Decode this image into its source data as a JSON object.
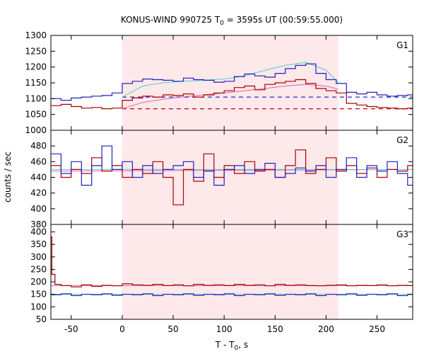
{
  "chart_data": {
    "type": "line",
    "title": "KONUS-WIND 990725 T",
    "title_sub": "0",
    "title_suffix": " = 3595s UT (00:59:55.000)",
    "xlabel": "T - T",
    "xlabel_sub": "0",
    "xlabel_suffix": ", s",
    "ylabel": "counts / sec",
    "xlim": [
      -70,
      285
    ],
    "x_ticks": [
      "-50",
      "0",
      "50",
      "100",
      "150",
      "200",
      "250"
    ],
    "x_tick_values": [
      -50,
      0,
      50,
      100,
      150,
      200,
      250
    ],
    "shaded_interval": [
      0,
      212
    ],
    "shade_color": "#fde8ea",
    "series_colors": {
      "red": "#aa0000",
      "blue": "#2222bb",
      "fit_red": "#dd66aa",
      "fit_blue": "#55cccc",
      "bkg_red": "#cc0000",
      "bkg_blue": "#2222cc"
    },
    "panels": [
      {
        "label": "G1",
        "ylim": [
          1000,
          1300
        ],
        "y_ticks": [
          "1000",
          "1050",
          "1100",
          "1150",
          "1200",
          "1250",
          "1300"
        ],
        "y_tick_values": [
          1000,
          1050,
          1100,
          1150,
          1200,
          1250,
          1300
        ],
        "red_bkg": 1068,
        "blue_bkg": 1105,
        "red": {
          "x": [
            -70,
            -60,
            -50,
            -40,
            -30,
            -20,
            -10,
            0,
            10,
            20,
            30,
            40,
            50,
            60,
            70,
            80,
            90,
            100,
            110,
            120,
            130,
            140,
            150,
            160,
            170,
            180,
            190,
            200,
            210,
            220,
            230,
            240,
            250,
            260,
            270,
            280
          ],
          "y": [
            1078,
            1082,
            1075,
            1070,
            1072,
            1068,
            1070,
            1095,
            1102,
            1108,
            1105,
            1112,
            1110,
            1115,
            1105,
            1112,
            1118,
            1125,
            1135,
            1140,
            1128,
            1145,
            1150,
            1155,
            1160,
            1148,
            1132,
            1125,
            1118,
            1085,
            1080,
            1075,
            1072,
            1070,
            1068,
            1070
          ]
        },
        "blue": {
          "x": [
            -70,
            -60,
            -50,
            -40,
            -30,
            -20,
            -10,
            0,
            10,
            20,
            30,
            40,
            50,
            60,
            70,
            80,
            90,
            100,
            110,
            120,
            130,
            140,
            150,
            160,
            170,
            180,
            190,
            200,
            210,
            220,
            230,
            240,
            250,
            260,
            270,
            280
          ],
          "y": [
            1100,
            1095,
            1102,
            1105,
            1108,
            1110,
            1118,
            1148,
            1155,
            1162,
            1160,
            1158,
            1155,
            1165,
            1160,
            1158,
            1152,
            1155,
            1170,
            1178,
            1172,
            1168,
            1180,
            1195,
            1205,
            1210,
            1180,
            1160,
            1148,
            1120,
            1115,
            1120,
            1112,
            1108,
            1110,
            1112
          ]
        },
        "fit_red": {
          "x": [
            0,
            20,
            40,
            60,
            80,
            100,
            120,
            140,
            160,
            180,
            200,
            212
          ],
          "y": [
            1068,
            1088,
            1098,
            1106,
            1112,
            1118,
            1125,
            1132,
            1140,
            1145,
            1140,
            1130
          ]
        },
        "fit_blue": {
          "x": [
            0,
            20,
            40,
            60,
            80,
            100,
            120,
            140,
            160,
            180,
            200,
            212
          ],
          "y": [
            1105,
            1140,
            1150,
            1155,
            1158,
            1162,
            1172,
            1190,
            1205,
            1215,
            1190,
            1150
          ]
        }
      },
      {
        "label": "G2",
        "ylim": [
          380,
          500
        ],
        "y_ticks": [
          "380",
          "400",
          "420",
          "440",
          "460",
          "480"
        ],
        "y_tick_values": [
          380,
          400,
          420,
          440,
          460,
          480
        ],
        "red_bkg": 448,
        "blue_bkg": 450,
        "red": {
          "x": [
            -70,
            -60,
            -50,
            -40,
            -30,
            -20,
            -10,
            0,
            10,
            20,
            30,
            40,
            50,
            60,
            70,
            80,
            90,
            100,
            110,
            120,
            130,
            140,
            150,
            160,
            170,
            180,
            190,
            200,
            210,
            220,
            230,
            240,
            250,
            260,
            270,
            280
          ],
          "y": [
            455,
            440,
            450,
            445,
            465,
            448,
            455,
            440,
            450,
            445,
            460,
            440,
            405,
            450,
            435,
            470,
            440,
            455,
            445,
            460,
            448,
            450,
            440,
            455,
            475,
            445,
            450,
            465,
            448,
            455,
            445,
            452,
            440,
            450,
            448,
            455
          ]
        },
        "blue": {
          "x": [
            -70,
            -60,
            -50,
            -40,
            -30,
            -20,
            -10,
            0,
            10,
            20,
            30,
            40,
            50,
            60,
            70,
            80,
            90,
            100,
            110,
            120,
            130,
            140,
            150,
            160,
            170,
            180,
            190,
            200,
            210,
            220,
            230,
            240,
            250,
            260,
            270,
            280
          ],
          "y": [
            470,
            445,
            460,
            430,
            455,
            480,
            450,
            460,
            440,
            455,
            445,
            450,
            455,
            460,
            440,
            448,
            430,
            450,
            455,
            445,
            450,
            458,
            440,
            445,
            452,
            448,
            455,
            440,
            450,
            465,
            440,
            455,
            448,
            460,
            445,
            430
          ]
        },
        "fit_red": {
          "x": [
            -70,
            285
          ],
          "y": [
            448,
            450
          ]
        },
        "fit_blue": {
          "x": [
            -70,
            285
          ],
          "y": [
            450,
            450
          ]
        }
      },
      {
        "label": "G3",
        "ylim": [
          50,
          430
        ],
        "y_ticks": [
          "50",
          "100",
          "150",
          "200",
          "250",
          "300",
          "350",
          "400"
        ],
        "y_tick_values": [
          50,
          100,
          150,
          200,
          250,
          300,
          350,
          400
        ],
        "red_bkg": 185,
        "blue_bkg": 150,
        "red": {
          "x": [
            -70,
            -69,
            -66,
            -60,
            -50,
            -40,
            -30,
            -20,
            -10,
            0,
            10,
            20,
            30,
            40,
            50,
            60,
            70,
            80,
            90,
            100,
            110,
            120,
            130,
            140,
            150,
            160,
            170,
            180,
            190,
            200,
            210,
            220,
            230,
            240,
            250,
            260,
            270,
            280
          ],
          "y": [
            380,
            230,
            190,
            185,
            180,
            188,
            182,
            186,
            184,
            192,
            188,
            186,
            190,
            185,
            188,
            184,
            190,
            186,
            188,
            185,
            190,
            186,
            188,
            184,
            190,
            186,
            188,
            185,
            184,
            186,
            188,
            184,
            186,
            185,
            188,
            184,
            186,
            185
          ]
        },
        "blue": {
          "x": [
            -70,
            -60,
            -50,
            -40,
            -30,
            -20,
            -10,
            0,
            10,
            20,
            30,
            40,
            50,
            60,
            70,
            80,
            90,
            100,
            110,
            120,
            130,
            140,
            150,
            160,
            170,
            180,
            190,
            200,
            210,
            220,
            230,
            240,
            250,
            260,
            270,
            280
          ],
          "y": [
            148,
            152,
            145,
            150,
            148,
            152,
            146,
            150,
            148,
            152,
            145,
            150,
            148,
            152,
            146,
            150,
            148,
            152,
            145,
            150,
            148,
            152,
            146,
            150,
            148,
            152,
            145,
            150,
            148,
            152,
            146,
            150,
            148,
            152,
            145,
            150
          ]
        },
        "fit_red": {
          "x": [
            -70,
            285
          ],
          "y": [
            185,
            185
          ]
        },
        "fit_blue": {
          "x": [
            -70,
            285
          ],
          "y": [
            150,
            150
          ]
        }
      }
    ]
  }
}
